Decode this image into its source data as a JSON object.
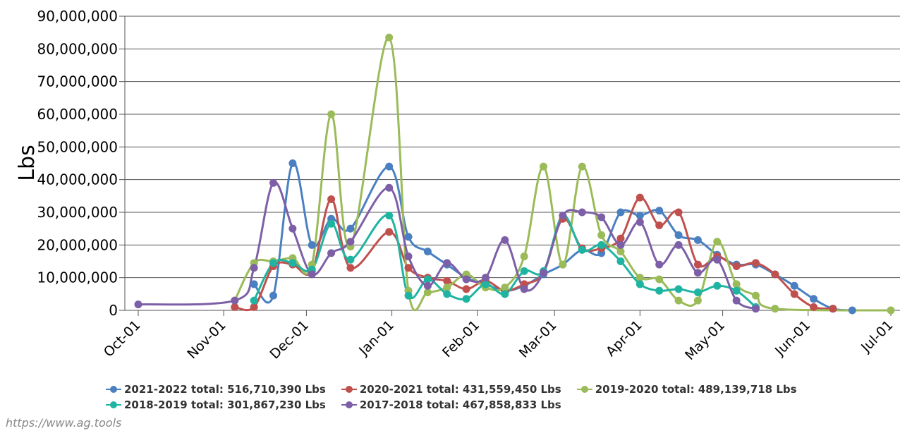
{
  "credit": "https://www.ag.tools",
  "chart_data": {
    "type": "line",
    "ylabel": "Lbs",
    "ylim": [
      0,
      90000000
    ],
    "yticks": [
      0,
      10000000,
      20000000,
      30000000,
      40000000,
      50000000,
      60000000,
      70000000,
      80000000,
      90000000
    ],
    "ytick_labels": [
      "0",
      "10,000,000",
      "20,000,000",
      "30,000,000",
      "40,000,000",
      "50,000,000",
      "60,000,000",
      "70,000,000",
      "80,000,000",
      "90,000,000"
    ],
    "xlim": [
      0,
      273
    ],
    "xticks": [
      {
        "day": 0,
        "label": "Oct-01"
      },
      {
        "day": 31,
        "label": "Nov-01"
      },
      {
        "day": 61,
        "label": "Dec-01"
      },
      {
        "day": 92,
        "label": "Jan-01"
      },
      {
        "day": 123,
        "label": "Feb-01"
      },
      {
        "day": 151,
        "label": "Mar-01"
      },
      {
        "day": 182,
        "label": "Apr-01"
      },
      {
        "day": 212,
        "label": "May-01"
      },
      {
        "day": 243,
        "label": "Jun-01"
      },
      {
        "day": 273,
        "label": "Jul-01"
      }
    ],
    "series": [
      {
        "name": "2021-2022",
        "legend": "2021-2022 total: 516,710,390 Lbs",
        "color": "#4a80c1",
        "points": [
          [
            42,
            8000000
          ],
          [
            49,
            4500000
          ],
          [
            56,
            45000000
          ],
          [
            63,
            20000000
          ],
          [
            70,
            28000000
          ],
          [
            77,
            25000000
          ],
          [
            91,
            44000000
          ],
          [
            98,
            22500000
          ],
          [
            105,
            18000000
          ],
          [
            112,
            14000000
          ],
          [
            119,
            10000000
          ],
          [
            126,
            8000000
          ],
          [
            133,
            6000000
          ],
          [
            140,
            7500000
          ],
          [
            147,
            11000000
          ],
          [
            154,
            14000000
          ],
          [
            161,
            18500000
          ],
          [
            168,
            17500000
          ],
          [
            175,
            30000000
          ],
          [
            182,
            29000000
          ],
          [
            189,
            30500000
          ],
          [
            196,
            23000000
          ],
          [
            203,
            21500000
          ],
          [
            210,
            17000000
          ],
          [
            217,
            14000000
          ],
          [
            224,
            14000000
          ],
          [
            231,
            11000000
          ],
          [
            238,
            7500000
          ],
          [
            245,
            3500000
          ],
          [
            252,
            500000
          ],
          [
            259,
            0
          ]
        ]
      },
      {
        "name": "2020-2021",
        "legend": "2020-2021 total: 431,559,450 Lbs",
        "color": "#c0504d",
        "points": [
          [
            35,
            1000000
          ],
          [
            42,
            1000000
          ],
          [
            49,
            13500000
          ],
          [
            56,
            14000000
          ],
          [
            63,
            12000000
          ],
          [
            70,
            34000000
          ],
          [
            77,
            13000000
          ],
          [
            91,
            24000000
          ],
          [
            98,
            13000000
          ],
          [
            105,
            10000000
          ],
          [
            112,
            9000000
          ],
          [
            119,
            6500000
          ],
          [
            126,
            9000000
          ],
          [
            133,
            6000000
          ],
          [
            140,
            8000000
          ],
          [
            147,
            11500000
          ],
          [
            154,
            28000000
          ],
          [
            161,
            19000000
          ],
          [
            168,
            19000000
          ],
          [
            175,
            22000000
          ],
          [
            182,
            34500000
          ],
          [
            189,
            26000000
          ],
          [
            196,
            30000000
          ],
          [
            203,
            14000000
          ],
          [
            210,
            16500000
          ],
          [
            217,
            13500000
          ],
          [
            224,
            14500000
          ],
          [
            231,
            11000000
          ],
          [
            238,
            5000000
          ],
          [
            245,
            1000000
          ],
          [
            252,
            500000
          ]
        ]
      },
      {
        "name": "2019-2020",
        "legend": "2019-2020 total: 489,139,718 Lbs",
        "color": "#9bbb59",
        "points": [
          [
            35,
            3000000
          ],
          [
            42,
            14500000
          ],
          [
            49,
            15000000
          ],
          [
            56,
            16000000
          ],
          [
            63,
            14000000
          ],
          [
            70,
            60000000
          ],
          [
            77,
            19500000
          ],
          [
            91,
            83500000
          ],
          [
            98,
            6000000
          ],
          [
            105,
            5500000
          ],
          [
            112,
            7000000
          ],
          [
            119,
            11000000
          ],
          [
            126,
            7000000
          ],
          [
            133,
            7000000
          ],
          [
            140,
            16500000
          ],
          [
            147,
            44000000
          ],
          [
            154,
            14000000
          ],
          [
            161,
            44000000
          ],
          [
            168,
            23000000
          ],
          [
            175,
            18000000
          ],
          [
            182,
            10000000
          ],
          [
            189,
            9500000
          ],
          [
            196,
            3000000
          ],
          [
            203,
            3000000
          ],
          [
            210,
            21000000
          ],
          [
            217,
            8000000
          ],
          [
            224,
            4500000
          ],
          [
            231,
            500000
          ],
          [
            273,
            0
          ]
        ]
      },
      {
        "name": "2018-2019",
        "legend": "2018-2019 total: 301,867,230 Lbs",
        "color": "#1fb4a2",
        "points": [
          [
            42,
            3000000
          ],
          [
            49,
            14500000
          ],
          [
            56,
            14500000
          ],
          [
            63,
            12500000
          ],
          [
            70,
            26500000
          ],
          [
            77,
            15500000
          ],
          [
            91,
            29000000
          ],
          [
            98,
            4500000
          ],
          [
            105,
            9500000
          ],
          [
            112,
            5000000
          ],
          [
            119,
            3500000
          ],
          [
            126,
            8000000
          ],
          [
            133,
            5000000
          ],
          [
            140,
            12000000
          ],
          [
            147,
            12000000
          ],
          [
            154,
            29000000
          ],
          [
            161,
            18500000
          ],
          [
            168,
            20000000
          ],
          [
            175,
            15000000
          ],
          [
            182,
            8000000
          ],
          [
            189,
            6000000
          ],
          [
            196,
            6500000
          ],
          [
            203,
            5500000
          ],
          [
            210,
            7500000
          ],
          [
            217,
            6000000
          ],
          [
            224,
            1000000
          ]
        ]
      },
      {
        "name": "2017-2018",
        "legend": "2017-2018 total: 467,858,833 Lbs",
        "color": "#7d5fa7",
        "points": [
          [
            0,
            1800000
          ],
          [
            35,
            3000000
          ],
          [
            42,
            13000000
          ],
          [
            49,
            39000000
          ],
          [
            56,
            25000000
          ],
          [
            63,
            11000000
          ],
          [
            70,
            17500000
          ],
          [
            77,
            21000000
          ],
          [
            91,
            37500000
          ],
          [
            98,
            16500000
          ],
          [
            105,
            7500000
          ],
          [
            112,
            14500000
          ],
          [
            119,
            9500000
          ],
          [
            126,
            10000000
          ],
          [
            133,
            21500000
          ],
          [
            140,
            6500000
          ],
          [
            147,
            11500000
          ],
          [
            154,
            29000000
          ],
          [
            161,
            30000000
          ],
          [
            168,
            28500000
          ],
          [
            175,
            20000000
          ],
          [
            182,
            27000000
          ],
          [
            189,
            14000000
          ],
          [
            196,
            20000000
          ],
          [
            203,
            11500000
          ],
          [
            210,
            15500000
          ],
          [
            217,
            3000000
          ],
          [
            224,
            500000
          ]
        ]
      }
    ],
    "legend_rows": [
      [
        0,
        1,
        2
      ],
      [
        3,
        4
      ]
    ]
  }
}
